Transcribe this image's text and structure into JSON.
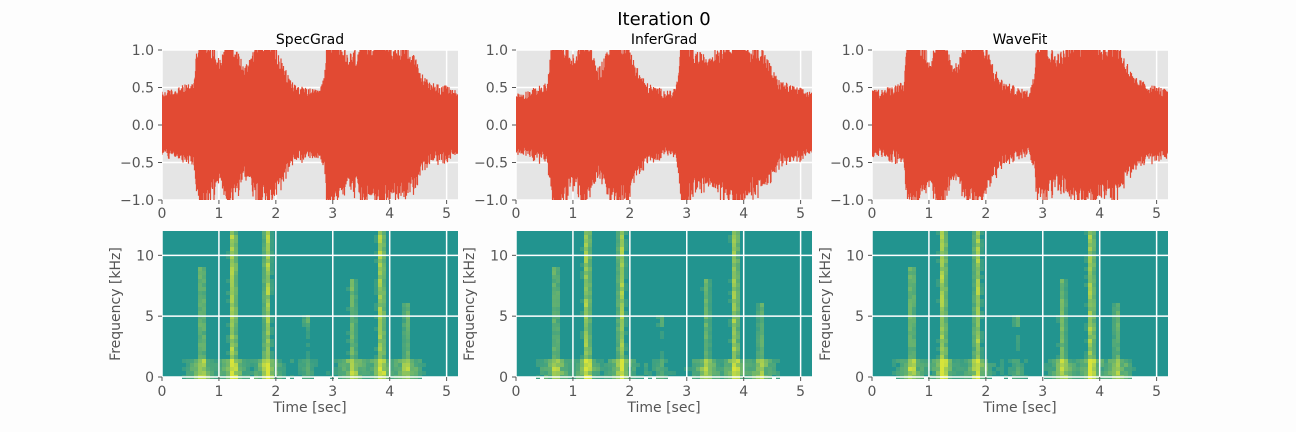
{
  "figure": {
    "title": "Iteration 0",
    "colors": {
      "background": "#fdfdfd",
      "axes_face": "#e5e5e5",
      "grid": "#ffffff",
      "waveform": "#e24a33",
      "spectrogram_base": "#22948f",
      "spectrogram_energy": "#d7e43a",
      "tick_text": "#555555"
    }
  },
  "chart_data": [
    {
      "type": "line",
      "panel": "waveform",
      "title": "SpecGrad",
      "xlim": [
        0,
        5.2
      ],
      "ylim": [
        -1.0,
        1.0
      ],
      "xticks": [
        0,
        1,
        2,
        3,
        4,
        5
      ],
      "yticks": [
        -1.0,
        -0.5,
        0.0,
        0.5,
        1.0
      ],
      "ytick_labels": [
        "−1.0",
        "−0.5",
        "0.0",
        "0.5",
        "1.0"
      ],
      "grid": true,
      "envelope": {
        "time": [
          0,
          0.2,
          0.55,
          0.65,
          0.75,
          0.9,
          1.05,
          1.15,
          1.2,
          1.3,
          1.45,
          1.55,
          1.65,
          1.75,
          1.85,
          1.95,
          2.05,
          2.15,
          2.3,
          2.45,
          2.6,
          2.75,
          2.85,
          2.9,
          3.0,
          3.15,
          3.3,
          3.5,
          3.7,
          3.8,
          3.9,
          4.0,
          4.15,
          4.3,
          4.45,
          4.6,
          4.75,
          4.9,
          5.05,
          5.2
        ],
        "amplitude": [
          0.35,
          0.38,
          0.45,
          1.0,
          1.0,
          0.85,
          0.7,
          1.0,
          1.0,
          0.85,
          0.6,
          0.75,
          0.95,
          1.0,
          1.0,
          0.9,
          0.75,
          0.6,
          0.45,
          0.4,
          0.38,
          0.36,
          0.5,
          1.0,
          1.0,
          0.8,
          0.75,
          0.85,
          0.95,
          1.0,
          1.0,
          0.9,
          0.85,
          0.9,
          0.7,
          0.5,
          0.45,
          0.42,
          0.4,
          0.35
        ]
      }
    },
    {
      "type": "line",
      "panel": "waveform",
      "title": "InferGrad",
      "xlim": [
        0,
        5.2
      ],
      "ylim": [
        -1.0,
        1.0
      ],
      "xticks": [
        0,
        1,
        2,
        3,
        4,
        5
      ],
      "yticks": [
        -1.0,
        -0.5,
        0.0,
        0.5,
        1.0
      ],
      "ytick_labels": [
        "−1.0",
        "−0.5",
        "0.0",
        "0.5",
        "1.0"
      ],
      "grid": true,
      "envelope": {
        "time": [
          0,
          0.2,
          0.55,
          0.65,
          0.75,
          0.9,
          1.05,
          1.15,
          1.2,
          1.3,
          1.45,
          1.55,
          1.65,
          1.75,
          1.85,
          1.95,
          2.05,
          2.15,
          2.3,
          2.45,
          2.6,
          2.75,
          2.85,
          2.9,
          3.0,
          3.15,
          3.3,
          3.5,
          3.7,
          3.8,
          3.9,
          4.0,
          4.15,
          4.3,
          4.45,
          4.6,
          4.75,
          4.9,
          5.05,
          5.2
        ],
        "amplitude": [
          0.33,
          0.36,
          0.44,
          1.0,
          1.0,
          0.82,
          0.7,
          1.0,
          1.0,
          0.82,
          0.6,
          0.72,
          0.92,
          1.0,
          1.0,
          0.88,
          0.74,
          0.58,
          0.44,
          0.4,
          0.37,
          0.35,
          0.5,
          1.0,
          1.0,
          0.78,
          0.74,
          0.82,
          0.92,
          1.0,
          1.0,
          0.88,
          0.82,
          0.86,
          0.66,
          0.48,
          0.44,
          0.4,
          0.38,
          0.34
        ]
      }
    },
    {
      "type": "line",
      "panel": "waveform",
      "title": "WaveFit",
      "xlim": [
        0,
        5.2
      ],
      "ylim": [
        -1.0,
        1.0
      ],
      "xticks": [
        0,
        1,
        2,
        3,
        4,
        5
      ],
      "yticks": [
        -1.0,
        -0.5,
        0.0,
        0.5,
        1.0
      ],
      "ytick_labels": [
        "−1.0",
        "−0.5",
        "0.0",
        "0.5",
        "1.0"
      ],
      "grid": true,
      "envelope": {
        "time": [
          0,
          0.2,
          0.55,
          0.65,
          0.75,
          0.9,
          1.05,
          1.15,
          1.2,
          1.3,
          1.45,
          1.55,
          1.65,
          1.75,
          1.85,
          1.95,
          2.05,
          2.15,
          2.3,
          2.45,
          2.6,
          2.75,
          2.85,
          2.9,
          3.0,
          3.15,
          3.3,
          3.5,
          3.7,
          3.8,
          3.9,
          4.0,
          4.15,
          4.3,
          4.45,
          4.6,
          4.75,
          4.9,
          5.05,
          5.2
        ],
        "amplitude": [
          0.36,
          0.38,
          0.46,
          1.0,
          1.0,
          0.86,
          0.72,
          1.0,
          1.0,
          0.86,
          0.62,
          0.76,
          0.96,
          1.0,
          1.0,
          0.9,
          0.76,
          0.6,
          0.46,
          0.42,
          0.38,
          0.36,
          0.52,
          1.0,
          1.0,
          0.8,
          0.76,
          0.86,
          0.96,
          1.0,
          1.0,
          0.9,
          0.86,
          0.9,
          0.7,
          0.5,
          0.46,
          0.42,
          0.4,
          0.36
        ]
      }
    },
    {
      "type": "heatmap",
      "panel": "spectrogram",
      "title": "",
      "xlabel": "Time [sec]",
      "ylabel": "Frequency [kHz]",
      "xlim": [
        0,
        5.2
      ],
      "ylim": [
        0,
        12
      ],
      "xticks": [
        0,
        1,
        2,
        3,
        4,
        5
      ],
      "yticks": [
        0,
        5,
        10
      ],
      "grid": true,
      "energy_streaks": [
        {
          "time": 0.7,
          "fmax": 9,
          "level": 0.55
        },
        {
          "time": 1.25,
          "fmax": 12,
          "level": 0.9
        },
        {
          "time": 1.85,
          "fmax": 12,
          "level": 0.85
        },
        {
          "time": 2.55,
          "fmax": 5,
          "level": 0.4
        },
        {
          "time": 3.35,
          "fmax": 8,
          "level": 0.5
        },
        {
          "time": 3.85,
          "fmax": 12,
          "level": 0.9
        },
        {
          "time": 4.3,
          "fmax": 6,
          "level": 0.45
        }
      ]
    },
    {
      "type": "heatmap",
      "panel": "spectrogram",
      "title": "",
      "xlabel": "Time [sec]",
      "ylabel": "Frequency [kHz]",
      "xlim": [
        0,
        5.2
      ],
      "ylim": [
        0,
        12
      ],
      "xticks": [
        0,
        1,
        2,
        3,
        4,
        5
      ],
      "yticks": [
        0,
        5,
        10
      ],
      "grid": true,
      "energy_streaks": [
        {
          "time": 0.7,
          "fmax": 9,
          "level": 0.5
        },
        {
          "time": 1.25,
          "fmax": 12,
          "level": 0.85
        },
        {
          "time": 1.85,
          "fmax": 12,
          "level": 0.8
        },
        {
          "time": 2.55,
          "fmax": 5,
          "level": 0.35
        },
        {
          "time": 3.35,
          "fmax": 8,
          "level": 0.45
        },
        {
          "time": 3.85,
          "fmax": 12,
          "level": 0.85
        },
        {
          "time": 4.3,
          "fmax": 6,
          "level": 0.4
        }
      ]
    },
    {
      "type": "heatmap",
      "panel": "spectrogram",
      "title": "",
      "xlabel": "Time [sec]",
      "ylabel": "Frequency [kHz]",
      "xlim": [
        0,
        5.2
      ],
      "ylim": [
        0,
        12
      ],
      "xticks": [
        0,
        1,
        2,
        3,
        4,
        5
      ],
      "yticks": [
        0,
        5,
        10
      ],
      "grid": true,
      "energy_streaks": [
        {
          "time": 0.7,
          "fmax": 9,
          "level": 0.55
        },
        {
          "time": 1.25,
          "fmax": 12,
          "level": 0.9
        },
        {
          "time": 1.85,
          "fmax": 12,
          "level": 0.85
        },
        {
          "time": 2.55,
          "fmax": 5,
          "level": 0.4
        },
        {
          "time": 3.35,
          "fmax": 8,
          "level": 0.5
        },
        {
          "time": 3.85,
          "fmax": 12,
          "level": 0.9
        },
        {
          "time": 4.3,
          "fmax": 6,
          "level": 0.45
        }
      ]
    }
  ]
}
